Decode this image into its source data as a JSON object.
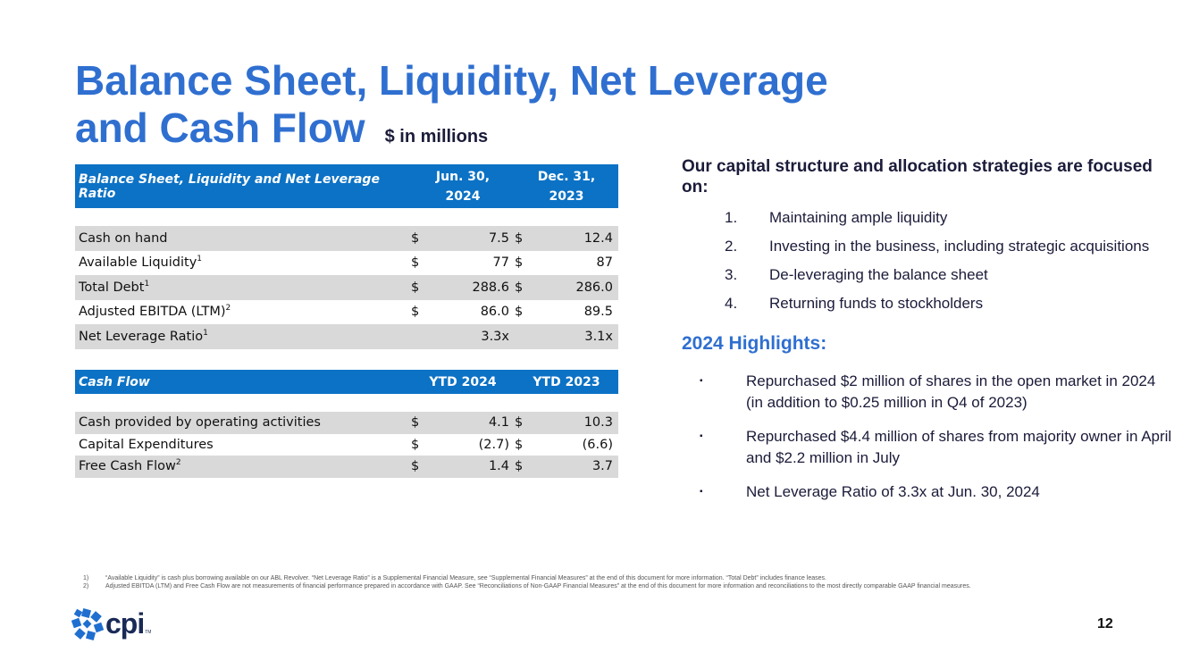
{
  "title": {
    "line1": "Balance Sheet, Liquidity, Net Leverage",
    "line2": "and Cash Flow",
    "units": "$ in millions"
  },
  "balance_table": {
    "header_label": "Balance Sheet, Liquidity and Net Leverage Ratio",
    "col1_line1": "Jun. 30,",
    "col1_line2": "2024",
    "col2_line1": "Dec. 31,",
    "col2_line2": "2023",
    "rows": [
      {
        "label": "Cash on hand",
        "sup": "",
        "c1_cur": "$",
        "c1": "7.5",
        "c2_cur": "$",
        "c2": "12.4"
      },
      {
        "label": "Available Liquidity",
        "sup": "1",
        "c1_cur": "$",
        "c1": "77",
        "c2_cur": "$",
        "c2": "87"
      },
      {
        "label": "Total Debt",
        "sup": "1",
        "c1_cur": "$",
        "c1": "288.6",
        "c2_cur": "$",
        "c2": "286.0"
      },
      {
        "label": "Adjusted EBITDA (LTM)",
        "sup": "2",
        "c1_cur": "$",
        "c1": "86.0",
        "c2_cur": "$",
        "c2": "89.5"
      },
      {
        "label": "Net Leverage Ratio",
        "sup": "1",
        "c1": "3.3x",
        "c2": "3.1x"
      }
    ]
  },
  "cashflow_table": {
    "header_label": "Cash Flow",
    "col1": "YTD 2024",
    "col2": "YTD 2023",
    "rows": [
      {
        "label": "Cash provided by operating activities",
        "sup": "",
        "c1_cur": "$",
        "c1": "4.1",
        "c2_cur": "$",
        "c2": "10.3"
      },
      {
        "label": "Capital Expenditures",
        "sup": "",
        "c1_cur": "$",
        "c1": "(2.7)",
        "c2_cur": "$",
        "c2": "(6.6)"
      },
      {
        "label": "Free Cash Flow",
        "sup": "2",
        "c1_cur": "$",
        "c1": "1.4",
        "c2_cur": "$",
        "c2": "3.7"
      }
    ]
  },
  "strategy": {
    "intro": "Our capital structure and allocation strategies are focused on:",
    "items": [
      {
        "n": "1.",
        "text": "Maintaining ample liquidity"
      },
      {
        "n": "2.",
        "text": "Investing in the business, including strategic acquisitions"
      },
      {
        "n": "3.",
        "text": "De-leveraging the balance sheet"
      },
      {
        "n": "4.",
        "text": "Returning funds to stockholders"
      }
    ]
  },
  "highlights": {
    "title": "2024 Highlights:",
    "bullet": "▪",
    "items": [
      "Repurchased $2 million of shares in the open market in 2024 (in addition to $0.25 million in Q4 of 2023)",
      "Repurchased $4.4 million of shares from majority owner in April and $2.2 million in July",
      "Net Leverage Ratio of 3.3x at Jun. 30, 2024"
    ]
  },
  "footnotes": [
    {
      "n": "1)",
      "text": "“Available Liquidity” is cash plus borrowing available on our ABL Revolver. “Net Leverage Ratio” is a Supplemental Financial Measure, see “Supplemental Financial Measures” at the end of this document for more information.  “Total Debt” includes finance leases."
    },
    {
      "n": "2)",
      "text": "Adjusted EBITDA (LTM) and Free Cash Flow are not measurements of financial performance prepared in accordance with GAAP. See “Reconciliations of Non-GAAP Financial Measures” at the end of this document for more information and reconciliations to the most directly comparable GAAP financial measures."
    }
  ],
  "logo": {
    "text": "cpi",
    "tm": "TM",
    "icon": "cpi-pinwheel-icon",
    "color": "#1f6fd0"
  },
  "page_number": "12",
  "colors": {
    "title": "#2f6fd0",
    "table_header": "#0c72c5",
    "row_shade": "#d9d9d9",
    "navy": "#1b1b3a"
  }
}
